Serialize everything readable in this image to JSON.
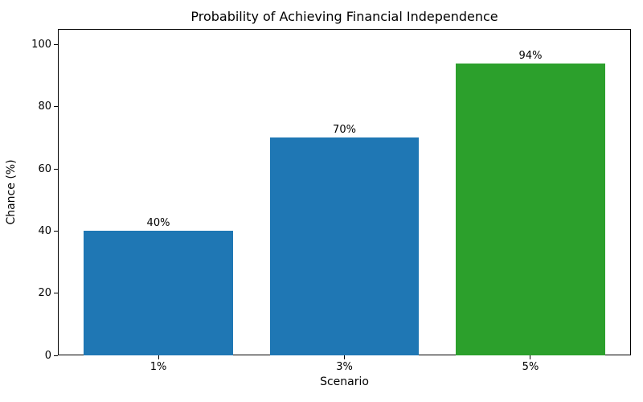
{
  "chart_data": {
    "type": "bar",
    "title": "Probability of Achieving Financial Independence",
    "xlabel": "Scenario",
    "ylabel": "Chance (%)",
    "categories": [
      "1%",
      "3%",
      "5%"
    ],
    "values": [
      40,
      70,
      94
    ],
    "bar_labels": [
      "40%",
      "70%",
      "94%"
    ],
    "bar_colors": [
      "#1f77b4",
      "#1f77b4",
      "#2ca02c"
    ],
    "ylim": [
      0,
      105
    ],
    "yticks": [
      0,
      20,
      40,
      60,
      80,
      100
    ],
    "grid": false,
    "legend": "none",
    "background_color": "#ffffff",
    "spine_color": "#000000"
  }
}
